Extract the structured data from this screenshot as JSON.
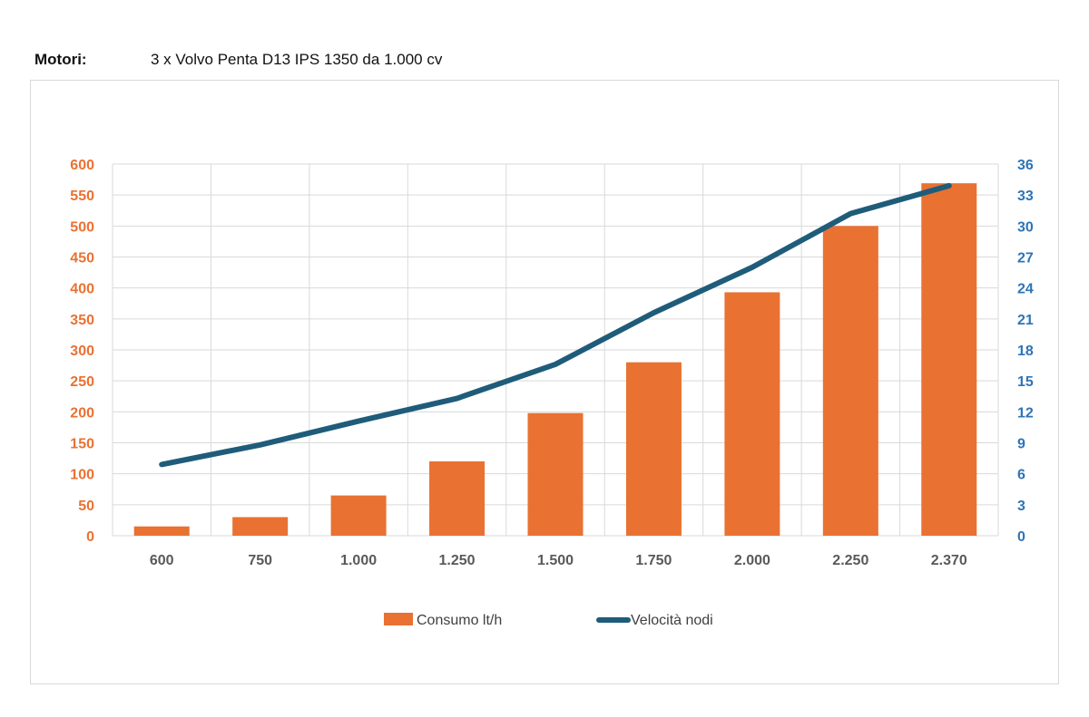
{
  "header": {
    "label": "Motori:",
    "value": "3 x Volvo Penta D13 IPS 1350 da 1.000 cv"
  },
  "colors": {
    "bar": "#E97132",
    "line": "#1F5C7A",
    "left_axis": "#E97132",
    "right_axis": "#2E74B5",
    "grid": "#d9d9d9"
  },
  "chart_data": {
    "type": "bar",
    "categories": [
      "600",
      "750",
      "1.000",
      "1.250",
      "1.500",
      "1.750",
      "2.000",
      "2.250",
      "2.370"
    ],
    "series": [
      {
        "name": "Consumo lt/h",
        "type": "bar",
        "axis": "left",
        "values": [
          15,
          30,
          65,
          120,
          198,
          280,
          393,
          500,
          569
        ]
      },
      {
        "name": "Velocità nodi",
        "type": "line",
        "axis": "right",
        "values": [
          6.9,
          8.8,
          11.1,
          13.3,
          16.6,
          21.6,
          26.0,
          31.2,
          33.9
        ]
      }
    ],
    "ylim_left": [
      0,
      600
    ],
    "yticks_left": [
      "0",
      "50",
      "100",
      "150",
      "200",
      "250",
      "300",
      "350",
      "400",
      "450",
      "500",
      "550",
      "600"
    ],
    "ylim_right": [
      0,
      36
    ],
    "yticks_right": [
      "0",
      "3",
      "6",
      "9",
      "12",
      "15",
      "18",
      "21",
      "24",
      "27",
      "30",
      "33",
      "36"
    ],
    "grid": true,
    "legend_position": "bottom"
  }
}
